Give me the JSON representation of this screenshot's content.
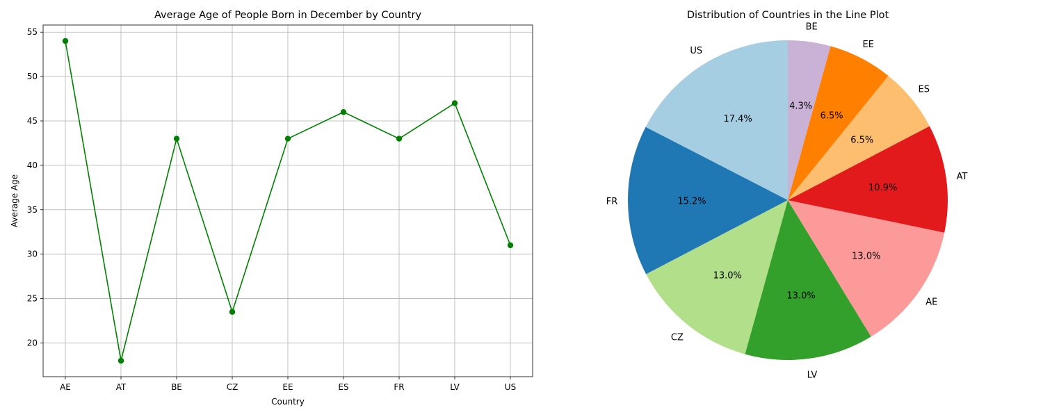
{
  "chart_data": [
    {
      "type": "line",
      "title": "Average Age of People Born in December by Country",
      "xlabel": "Country",
      "ylabel": "Average Age",
      "categories": [
        "AE",
        "AT",
        "BE",
        "CZ",
        "EE",
        "ES",
        "FR",
        "LV",
        "US"
      ],
      "values": [
        54,
        18,
        43,
        23.5,
        43,
        46,
        43,
        47,
        31
      ],
      "yticks": [
        20,
        25,
        30,
        35,
        40,
        45,
        50,
        55
      ],
      "ylim": [
        16.2,
        55.8
      ],
      "grid": true,
      "color": "#008000",
      "marker": "circle"
    },
    {
      "type": "pie",
      "title": "Distribution of Countries in the Line Plot",
      "slices": [
        {
          "label": "US",
          "pct": "17.4%",
          "value": 17.4,
          "color": "#a6cee3"
        },
        {
          "label": "FR",
          "pct": "15.2%",
          "value": 15.2,
          "color": "#1f78b4"
        },
        {
          "label": "CZ",
          "pct": "13.0%",
          "value": 13.0,
          "color": "#b2df8a"
        },
        {
          "label": "LV",
          "pct": "13.0%",
          "value": 13.0,
          "color": "#33a02c"
        },
        {
          "label": "AE",
          "pct": "13.0%",
          "value": 13.0,
          "color": "#fb9a99"
        },
        {
          "label": "AT",
          "pct": "10.9%",
          "value": 10.9,
          "color": "#e31a1c"
        },
        {
          "label": "ES",
          "pct": "6.5%",
          "value": 6.5,
          "color": "#fdbf6f"
        },
        {
          "label": "EE",
          "pct": "6.5%",
          "value": 6.5,
          "color": "#ff7f00"
        },
        {
          "label": "BE",
          "pct": "4.3%",
          "value": 4.3,
          "color": "#cab2d6"
        }
      ],
      "startangle": 90,
      "direction": "counterclockwise"
    }
  ]
}
